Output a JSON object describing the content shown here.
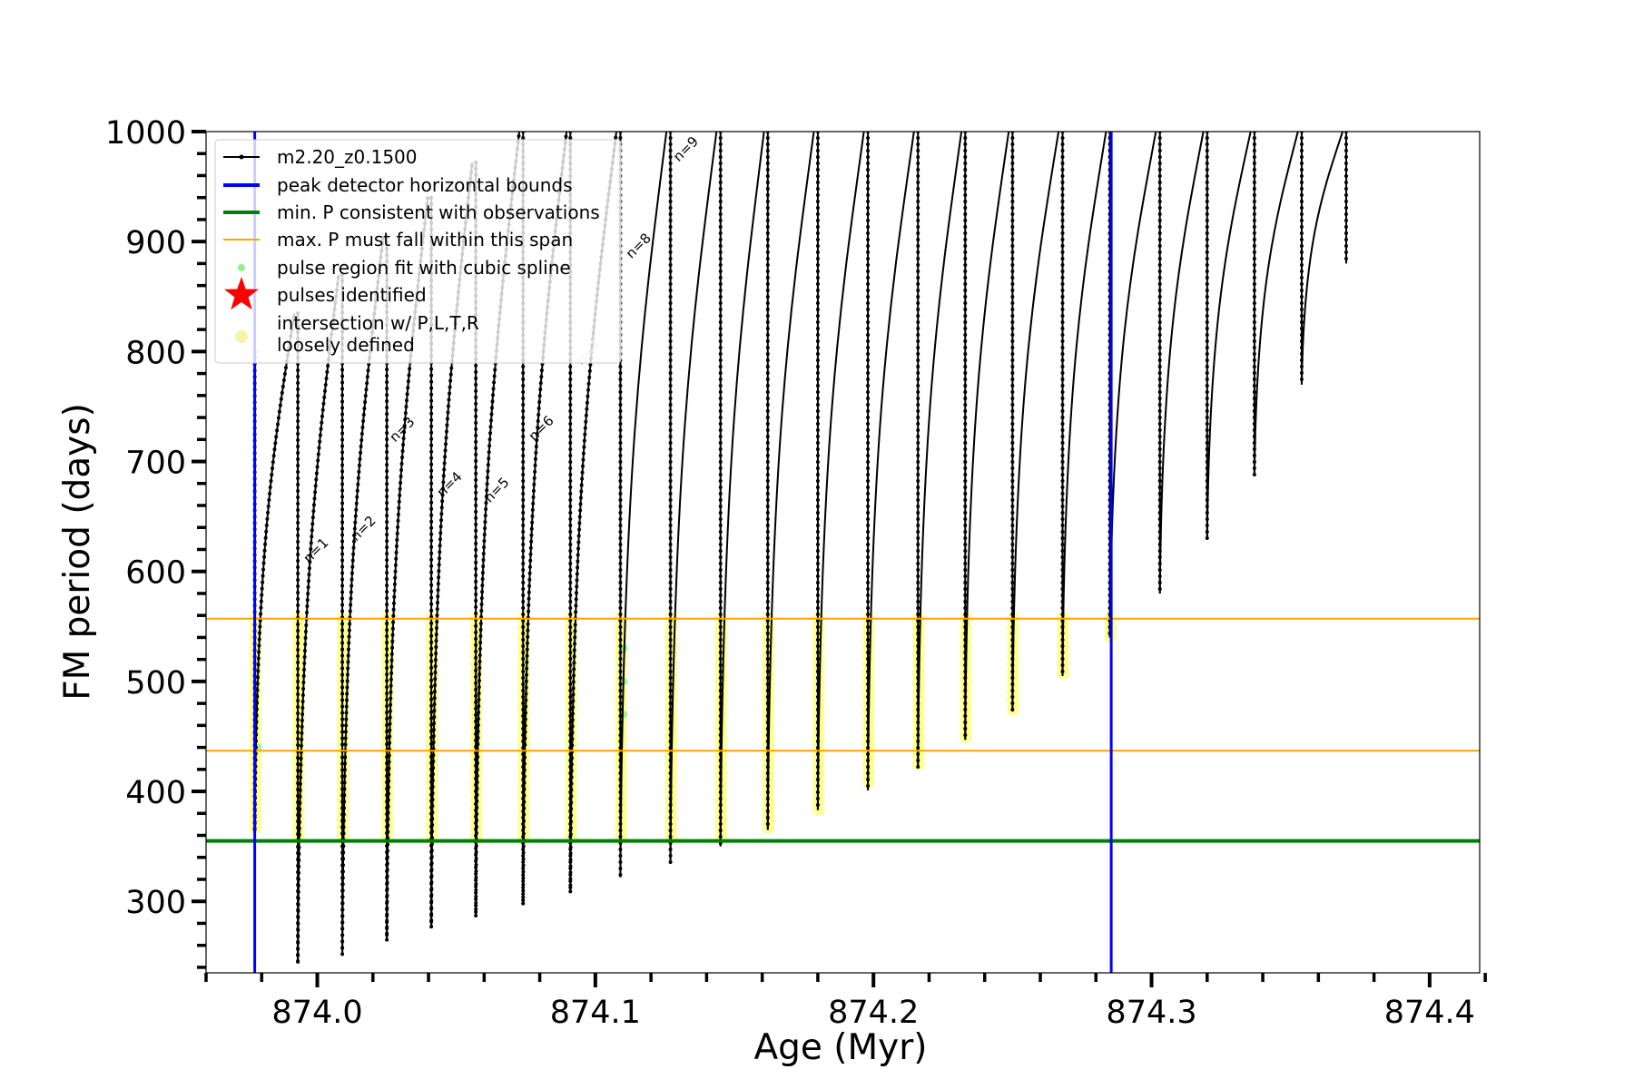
{
  "chart_data": {
    "type": "line",
    "xlabel": "Age (Myr)",
    "ylabel": "FM period (days)",
    "xlim": [
      873.96,
      874.418
    ],
    "ylim": [
      235,
      1000
    ],
    "xticks": [
      874.0,
      874.1,
      874.2,
      874.3,
      874.4
    ],
    "xtick_labels": [
      "874.0",
      "874.1",
      "874.2",
      "874.3",
      "874.4"
    ],
    "yticks": [
      300,
      400,
      500,
      600,
      700,
      800,
      900,
      1000
    ],
    "ytick_labels": [
      "300",
      "400",
      "500",
      "600",
      "700",
      "800",
      "900",
      "1000"
    ],
    "grid": false,
    "legend_position": "upper-left",
    "legend": [
      {
        "label": "m2.20_z0.1500",
        "kind": "line-marker",
        "color": "#000000"
      },
      {
        "label": "peak detector horizontal bounds",
        "kind": "line",
        "color": "#0000ff"
      },
      {
        "label": "min. P consistent with observations",
        "kind": "line",
        "color": "#008000"
      },
      {
        "label": "max. P must fall within this span",
        "kind": "line",
        "color": "#ffa500"
      },
      {
        "label": "pulse region fit with cubic spline",
        "kind": "dot",
        "color": "#90ee90"
      },
      {
        "label": "pulses identified",
        "kind": "star",
        "color": "#ff0000"
      },
      {
        "label": "intersection w/ P,L,T,R\nloosely defined",
        "kind": "circle",
        "color": "#f5f5a8"
      }
    ],
    "vertical_lines": [
      {
        "x": 873.9775,
        "color": "#0000ff",
        "name": "peak detector horizontal bounds"
      },
      {
        "x": 874.2855,
        "color": "#0000ff",
        "name": "peak detector horizontal bounds"
      }
    ],
    "horizontal_lines": [
      {
        "y": 355,
        "color": "#008000",
        "name": "min. P consistent with observations"
      },
      {
        "y": 557,
        "color": "#ffa500",
        "name": "max. P must fall within this span"
      },
      {
        "y": 437,
        "color": "#ffa500",
        "name": "max. P must fall within this span"
      }
    ],
    "pulses": [
      {
        "x": 873.9775,
        "min": 365,
        "peak": 800
      },
      {
        "x": 873.993,
        "min": 245,
        "peak": 835
      },
      {
        "x": 874.009,
        "min": 252,
        "peak": 870
      },
      {
        "x": 874.025,
        "min": 265,
        "peak": 905
      },
      {
        "x": 874.041,
        "min": 277,
        "peak": 940
      },
      {
        "x": 874.057,
        "min": 287,
        "peak": 972
      },
      {
        "x": 874.074,
        "min": 298,
        "peak": 1000
      },
      {
        "x": 874.091,
        "min": 309,
        "peak": 1000
      },
      {
        "x": 874.109,
        "min": 322,
        "peak": 1000
      },
      {
        "x": 874.127,
        "min": 335,
        "peak": 1000
      },
      {
        "x": 874.145,
        "min": 350,
        "peak": 1000
      },
      {
        "x": 874.162,
        "min": 365,
        "peak": 1000
      },
      {
        "x": 874.18,
        "min": 383,
        "peak": 1000
      },
      {
        "x": 874.198,
        "min": 401,
        "peak": 1000
      },
      {
        "x": 874.216,
        "min": 422,
        "peak": 1000
      },
      {
        "x": 874.233,
        "min": 447,
        "peak": 1000
      },
      {
        "x": 874.25,
        "min": 473,
        "peak": 1000
      },
      {
        "x": 874.268,
        "min": 505,
        "peak": 1000
      },
      {
        "x": 874.285,
        "min": 540,
        "peak": 1000
      },
      {
        "x": 874.303,
        "min": 580,
        "peak": 1000
      },
      {
        "x": 874.32,
        "min": 630,
        "peak": 1000
      },
      {
        "x": 874.337,
        "min": 688,
        "peak": 1000
      },
      {
        "x": 874.354,
        "min": 770,
        "peak": 1000
      },
      {
        "x": 874.37,
        "min": 880,
        "peak": 1000
      }
    ],
    "annotations": [
      {
        "text": "n=1",
        "x": 873.997,
        "y": 607,
        "color": "#000000"
      },
      {
        "text": "n=2",
        "x": 874.014,
        "y": 627,
        "color": "#000000"
      },
      {
        "text": "n=3",
        "x": 874.028,
        "y": 717,
        "color": "#000000"
      },
      {
        "text": "n=4",
        "x": 874.045,
        "y": 667,
        "color": "#000000"
      },
      {
        "text": "n=5",
        "x": 874.062,
        "y": 662,
        "color": "#000000"
      },
      {
        "text": "n=6",
        "x": 874.078,
        "y": 718,
        "color": "#000000"
      },
      {
        "text": "n=7",
        "x": 874.095,
        "y": 787,
        "color": "#bbbbbb"
      },
      {
        "text": "n=8",
        "x": 874.113,
        "y": 884,
        "color": "#000000"
      },
      {
        "text": "n=9",
        "x": 874.13,
        "y": 972,
        "color": "#000000"
      }
    ]
  }
}
